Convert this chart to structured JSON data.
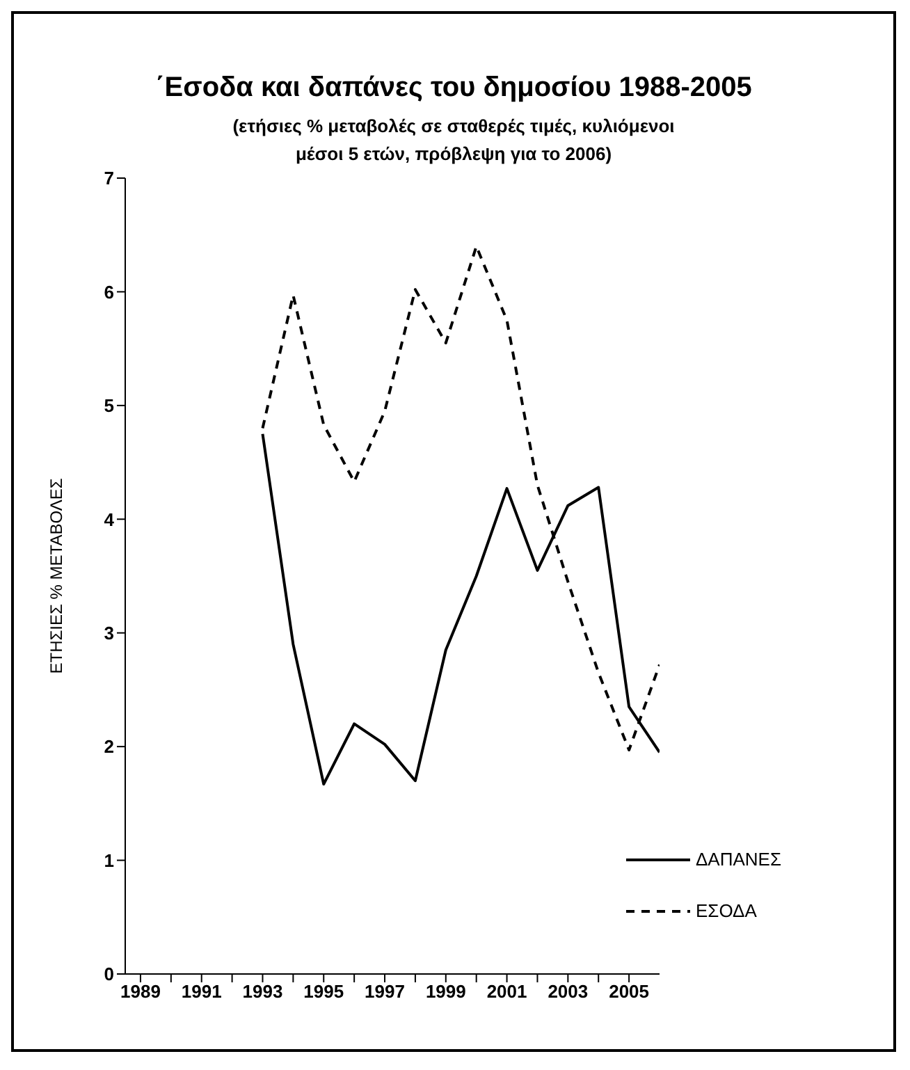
{
  "chart_data": {
    "type": "line",
    "title": "΄Εσοδα και δαπάνες του δημοσίου 1988-2005",
    "subtitle": "(ετήσιες % μεταβολές σε σταθερές τιμές, κυλιόμενοι μέσοι 5 ετών, πρόβλεψη για το 2006)",
    "ylabel": "ΕΤΗΣΙΕΣ % ΜΕΤΑΒΟΛΕΣ",
    "x": [
      1993,
      1994,
      1995,
      1996,
      1997,
      1998,
      1999,
      2000,
      2001,
      2002,
      2003,
      2004,
      2005,
      2006
    ],
    "series": [
      {
        "name": "ΔΑΠΑΝΕΣ",
        "color": "#000000",
        "line_style": "solid",
        "values": [
          4.75,
          2.9,
          1.67,
          2.2,
          2.02,
          1.7,
          2.85,
          3.5,
          4.27,
          3.55,
          4.12,
          4.28,
          2.35,
          1.95
        ]
      },
      {
        "name": "ΕΣΟΔΑ",
        "color": "#000000",
        "line_style": "dashed",
        "values": [
          4.8,
          5.97,
          4.83,
          4.33,
          4.95,
          6.02,
          5.55,
          6.4,
          5.75,
          4.3,
          3.45,
          2.65,
          1.97,
          2.72
        ]
      }
    ],
    "xlim": [
      1988.5,
      2006
    ],
    "xticks": [
      1989,
      {
        "value": 1990,
        "label": null
      },
      1991,
      {
        "value": 1992,
        "label": null
      },
      1993,
      {
        "value": 1994,
        "label": null
      },
      1995,
      {
        "value": 1996,
        "label": null
      },
      1997,
      {
        "value": 1998,
        "label": null
      },
      1999,
      {
        "value": 2000,
        "label": null
      },
      2001,
      {
        "value": 2002,
        "label": null
      },
      2003,
      {
        "value": 2004,
        "label": null
      },
      2005
    ],
    "ylim": [
      0,
      7
    ],
    "yticks": [
      0,
      1,
      2,
      3,
      4,
      5,
      6,
      7
    ],
    "grid": false,
    "legend": "bottom right",
    "marker": "none"
  }
}
